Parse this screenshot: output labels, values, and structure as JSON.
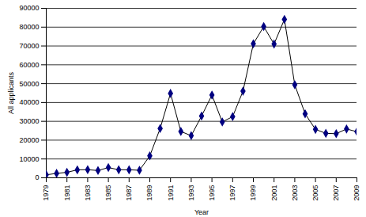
{
  "chart_data": {
    "type": "line",
    "x_label": "Year",
    "y_label": "All applicants",
    "x": [
      1979,
      1980,
      1981,
      1982,
      1983,
      1984,
      1985,
      1986,
      1987,
      1988,
      1989,
      1990,
      1991,
      1992,
      1993,
      1994,
      1995,
      1996,
      1997,
      1998,
      1999,
      2000,
      2001,
      2002,
      2003,
      2004,
      2005,
      2006,
      2007,
      2008,
      2009
    ],
    "values": [
      1563,
      2352,
      2905,
      4223,
      4296,
      3869,
      5444,
      4266,
      4256,
      3998,
      11640,
      26205,
      44840,
      24605,
      22370,
      32830,
      43965,
      29640,
      32500,
      46015,
      71160,
      80315,
      71025,
      84130,
      49405,
      33960,
      25710,
      23610,
      23430,
      25930,
      24485
    ],
    "color": "#000080",
    "marker": "diamond",
    "xlim": [
      1979,
      2009
    ],
    "xticks": [
      1979,
      1981,
      1983,
      1985,
      1987,
      1989,
      1991,
      1993,
      1995,
      1997,
      1999,
      2001,
      2003,
      2005,
      2007,
      2009
    ],
    "ylim": [
      0,
      90000
    ],
    "yticks": [
      0,
      10000,
      20000,
      30000,
      40000,
      50000,
      60000,
      70000,
      80000,
      90000
    ],
    "grid": true
  }
}
